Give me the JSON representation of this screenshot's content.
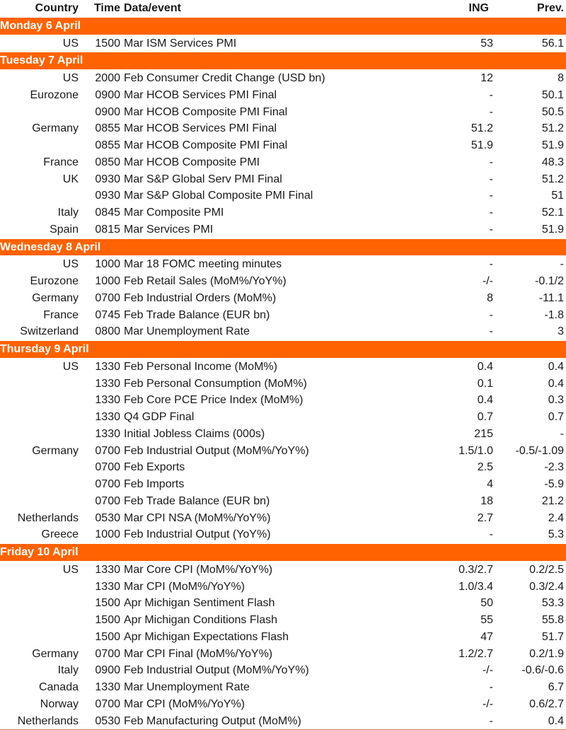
{
  "header": {
    "country": "Country",
    "time": "Time",
    "event": "Data/event",
    "ing": "ING",
    "prev": "Prev."
  },
  "colors": {
    "accent": "#ff6200",
    "text": "#1a1a1a",
    "header_text": "#ffffff"
  },
  "days": [
    {
      "title": "Monday 6 April",
      "rows": [
        {
          "country": "US",
          "time": "1500",
          "event": "Mar ISM Services PMI",
          "ing": "53",
          "prev": "56.1"
        }
      ]
    },
    {
      "title": "Tuesday 7 April",
      "rows": [
        {
          "country": "US",
          "time": "2000",
          "event": "Feb Consumer Credit Change (USD bn)",
          "ing": "12",
          "prev": "8"
        },
        {
          "country": "Eurozone",
          "time": "0900",
          "event": "Mar HCOB Services PMI Final",
          "ing": "-",
          "prev": "50.1"
        },
        {
          "country": "",
          "time": "0900",
          "event": "Mar HCOB Composite PMI Final",
          "ing": "-",
          "prev": "50.5"
        },
        {
          "country": "Germany",
          "time": "0855",
          "event": "Mar HCOB Services PMI Final",
          "ing": "51.2",
          "prev": "51.2"
        },
        {
          "country": "",
          "time": "0855",
          "event": "Mar HCOB Composite PMI Final",
          "ing": "51.9",
          "prev": "51.9"
        },
        {
          "country": "France",
          "time": "0850",
          "event": "Mar HCOB Composite PMI",
          "ing": "-",
          "prev": "48.3"
        },
        {
          "country": "UK",
          "time": "0930",
          "event": "Mar S&P Global Serv PMI Final",
          "ing": "-",
          "prev": "51.2"
        },
        {
          "country": "",
          "time": "0930",
          "event": "Mar S&P Global Composite PMI Final",
          "ing": "-",
          "prev": "51"
        },
        {
          "country": "Italy",
          "time": "0845",
          "event": "Mar Composite PMI",
          "ing": "-",
          "prev": "52.1"
        },
        {
          "country": "Spain",
          "time": "0815",
          "event": "Mar Services PMI",
          "ing": "-",
          "prev": "51.9"
        }
      ]
    },
    {
      "title": "Wednesday 8 April",
      "rows": [
        {
          "country": "US",
          "time": "1000",
          "event": "Mar 18 FOMC  meeting minutes",
          "ing": "-",
          "prev": "-"
        },
        {
          "country": "Eurozone",
          "time": "1000",
          "event": "Feb Retail Sales (MoM%/YoY%)",
          "ing": "-/-",
          "prev": "-0.1/2"
        },
        {
          "country": "Germany",
          "time": "0700",
          "event": "Feb Industrial Orders (MoM%)",
          "ing": "8",
          "prev": "-11.1"
        },
        {
          "country": "France",
          "time": "0745",
          "event": "Feb Trade Balance (EUR bn)",
          "ing": "-",
          "prev": "-1.8"
        },
        {
          "country": "Switzerland",
          "time": "0800",
          "event": "Mar Unemployment Rate",
          "ing": "-",
          "prev": "3"
        }
      ]
    },
    {
      "title": "Thursday 9 April",
      "rows": [
        {
          "country": "US",
          "time": "1330",
          "event": "Feb Personal Income (MoM%)",
          "ing": "0.4",
          "prev": "0.4"
        },
        {
          "country": "",
          "time": "1330",
          "event": "Feb Personal Consumption (MoM%)",
          "ing": "0.1",
          "prev": "0.4"
        },
        {
          "country": "",
          "time": "1330",
          "event": "Feb Core PCE Price Index (MoM%)",
          "ing": "0.4",
          "prev": "0.3"
        },
        {
          "country": "",
          "time": "1330",
          "event": "Q4 GDP Final",
          "ing": "0.7",
          "prev": "0.7"
        },
        {
          "country": "",
          "time": "1330",
          "event": "Initial Jobless Claims (000s)",
          "ing": "215",
          "prev": "-"
        },
        {
          "country": "Germany",
          "time": "0700",
          "event": "Feb Industrial Output (MoM%/YoY%)",
          "ing": "1.5/1.0",
          "prev": "-0.5/-1.09"
        },
        {
          "country": "",
          "time": "0700",
          "event": "Feb Exports",
          "ing": "2.5",
          "prev": "-2.3"
        },
        {
          "country": "",
          "time": "0700",
          "event": "Feb Imports",
          "ing": "4",
          "prev": "-5.9"
        },
        {
          "country": "",
          "time": "0700",
          "event": "Feb Trade Balance (EUR bn)",
          "ing": "18",
          "prev": "21.2"
        },
        {
          "country": "Netherlands",
          "time": "0530",
          "event": "Mar CPI NSA (MoM%/YoY%)",
          "ing": "2.7",
          "prev": "2.4"
        },
        {
          "country": "Greece",
          "time": "1000",
          "event": "Feb Industrial Output (YoY%)",
          "ing": "-",
          "prev": "5.3"
        }
      ]
    },
    {
      "title": "Friday 10 April",
      "rows": [
        {
          "country": "US",
          "time": "1330",
          "event": "Mar Core CPI (MoM%/YoY%)",
          "ing": "0.3/2.7",
          "prev": "0.2/2.5"
        },
        {
          "country": "",
          "time": "1330",
          "event": "Mar CPI  (MoM%/YoY%)",
          "ing": "1.0/3.4",
          "prev": "0.3/2.4"
        },
        {
          "country": "",
          "time": "1500",
          "event": "Apr Michigan Sentiment Flash",
          "ing": "50",
          "prev": "53.3"
        },
        {
          "country": "",
          "time": "1500",
          "event": "Apr Michigan Conditions Flash",
          "ing": "55",
          "prev": "55.8"
        },
        {
          "country": "",
          "time": "1500",
          "event": "Apr Michigan Expectations Flash",
          "ing": "47",
          "prev": "51.7"
        },
        {
          "country": "Germany",
          "time": "0700",
          "event": "Mar CPI Final (MoM%/YoY%)",
          "ing": "1.2/2.7",
          "prev": "0.2/1.9"
        },
        {
          "country": "Italy",
          "time": "0900",
          "event": "Feb Industrial Output (MoM%/YoY%)",
          "ing": "-/-",
          "prev": "-0.6/-0.6"
        },
        {
          "country": "Canada",
          "time": "1330",
          "event": "Mar Unemployment Rate",
          "ing": "-",
          "prev": "6.7"
        },
        {
          "country": "Norway",
          "time": "0700",
          "event": "Mar CPI (MoM%/YoY%)",
          "ing": "-/-",
          "prev": "0.6/2.7"
        },
        {
          "country": "Netherlands",
          "time": "0530",
          "event": "Feb Manufacturing Output (MoM%)",
          "ing": "-",
          "prev": "0.4"
        }
      ]
    }
  ]
}
